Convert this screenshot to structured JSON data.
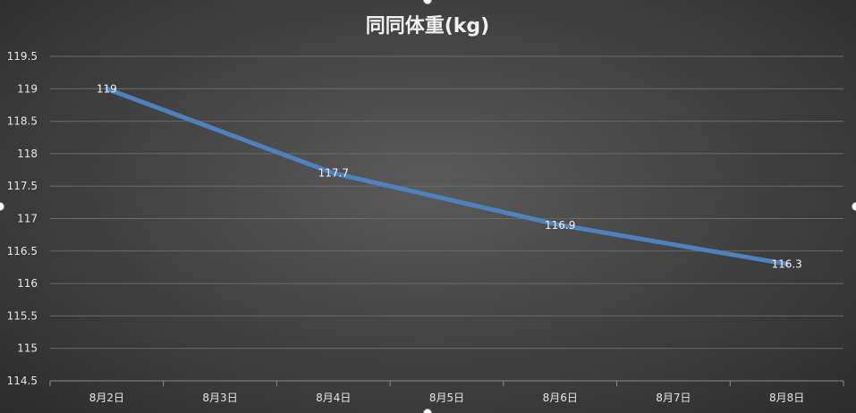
{
  "chart_data": {
    "type": "line",
    "title": "同同体重(kg)",
    "xlabel": "",
    "ylabel": "",
    "categories": [
      "8月2日",
      "8月3日",
      "8月4日",
      "8月5日",
      "8月6日",
      "8月7日",
      "8月8日"
    ],
    "series": [
      {
        "values": [
          {
            "category": "8月2日",
            "value": 119
          },
          {
            "category": "8月4日",
            "value": 117.7
          },
          {
            "category": "8月6日",
            "value": 116.9
          },
          {
            "category": "8月8日",
            "value": 116.3
          }
        ]
      }
    ],
    "ylim": [
      114.5,
      119.5
    ],
    "yticks": [
      "114.5",
      "115",
      "115.5",
      "116",
      "116.5",
      "117",
      "117.5",
      "118",
      "118.5",
      "119",
      "119.5"
    ],
    "grid": true,
    "legend": "none",
    "colors": {
      "line": "#4f81bd"
    }
  }
}
